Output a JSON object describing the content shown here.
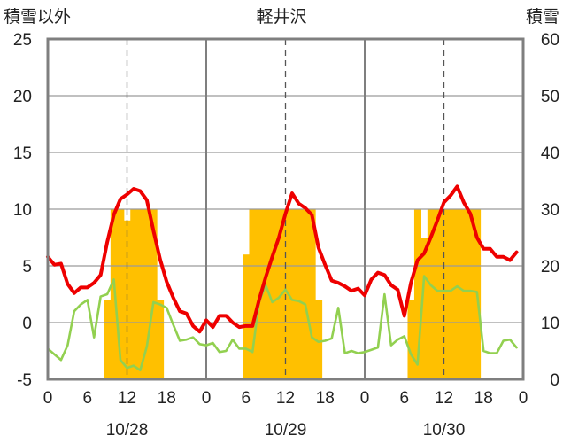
{
  "chart_data": {
    "type": "line",
    "title": "軽井沢",
    "left_axis_label": "積雪以外",
    "right_axis_label": "積雪",
    "left_ylim": [
      -5,
      25
    ],
    "left_yticks": [
      -5,
      0,
      5,
      10,
      15,
      20,
      25
    ],
    "right_ylim": [
      0,
      60
    ],
    "right_yticks": [
      0,
      10,
      20,
      30,
      40,
      50,
      60
    ],
    "x_range_hours": [
      0,
      72
    ],
    "x_tick_labels": [
      "0",
      "6",
      "12",
      "18",
      "0",
      "6",
      "12",
      "18",
      "0",
      "6",
      "12",
      "18",
      "0"
    ],
    "date_labels": [
      "10/28",
      "10/29",
      "10/30"
    ],
    "grid": "dashed vertical at 12h, solid vertical at day boundaries",
    "colors": {
      "red_series": "#ee0000",
      "green_series": "#92d050",
      "bars": "#ffc000",
      "frame": "#7f7f7f"
    },
    "bars": {
      "axis": "right",
      "x": [
        9,
        10,
        11,
        12,
        13,
        14,
        15,
        16,
        17,
        30,
        31,
        32,
        33,
        34,
        35,
        36,
        37,
        38,
        39,
        40,
        41,
        55,
        56,
        57,
        58,
        59,
        60,
        61,
        62,
        63,
        64,
        65
      ],
      "values": [
        14,
        30,
        30,
        28,
        30,
        30,
        30,
        30,
        14,
        22,
        30,
        30,
        30,
        30,
        30,
        30,
        30,
        30,
        30,
        30,
        14,
        14,
        30,
        25,
        30,
        30,
        30,
        30,
        30,
        30,
        30,
        30
      ]
    },
    "red_series": {
      "axis": "left",
      "x": [
        0,
        1,
        2,
        3,
        4,
        5,
        6,
        7,
        8,
        9,
        10,
        11,
        12,
        13,
        14,
        15,
        16,
        17,
        18,
        19,
        20,
        21,
        22,
        23,
        24,
        25,
        26,
        27,
        28,
        29,
        30,
        31,
        32,
        33,
        34,
        35,
        36,
        37,
        38,
        39,
        40,
        41,
        42,
        43,
        44,
        45,
        46,
        47,
        48,
        49,
        50,
        51,
        52,
        53,
        54,
        55,
        56,
        57,
        58,
        59,
        60,
        61,
        62,
        63,
        64,
        65,
        66,
        67,
        68,
        69,
        70,
        71
      ],
      "y": [
        5.8,
        5.1,
        5.2,
        3.4,
        2.6,
        3.1,
        3.1,
        3.5,
        4.2,
        7.1,
        9.5,
        10.9,
        11.3,
        11.8,
        11.6,
        10.8,
        8.1,
        5.6,
        3.6,
        2.2,
        1.0,
        0.8,
        -0.3,
        -0.8,
        0.2,
        -0.4,
        0.6,
        0.6,
        0.0,
        -0.4,
        -0.3,
        -0.3,
        2.0,
        4.0,
        5.8,
        7.5,
        9.6,
        11.4,
        10.5,
        10.1,
        9.5,
        6.6,
        5.1,
        3.7,
        3.5,
        3.2,
        2.8,
        3.0,
        2.4,
        3.8,
        4.4,
        4.2,
        3.3,
        2.9,
        0.6,
        3.5,
        5.5,
        6.1,
        7.5,
        9.0,
        10.6,
        11.2,
        12.0,
        10.6,
        9.6,
        7.5,
        6.5,
        6.5,
        5.8,
        5.8,
        5.5,
        6.2
      ]
    },
    "green_series": {
      "axis": "left",
      "x": [
        0,
        1,
        2,
        3,
        4,
        5,
        6,
        7,
        8,
        9,
        10,
        11,
        12,
        13,
        14,
        15,
        16,
        17,
        18,
        19,
        20,
        21,
        22,
        23,
        24,
        25,
        26,
        27,
        28,
        29,
        30,
        31,
        32,
        33,
        34,
        35,
        36,
        37,
        38,
        39,
        40,
        41,
        42,
        43,
        44,
        45,
        46,
        47,
        48,
        49,
        50,
        51,
        52,
        53,
        54,
        55,
        56,
        57,
        58,
        59,
        60,
        61,
        62,
        63,
        64,
        65,
        66,
        67,
        68,
        69,
        70,
        71
      ],
      "y": [
        -2.3,
        -2.8,
        -3.3,
        -2.0,
        1.0,
        1.6,
        2.0,
        -1.3,
        2.3,
        2.5,
        3.8,
        -3.3,
        -4.0,
        -3.8,
        -4.2,
        -2.1,
        1.8,
        1.6,
        1.3,
        -0.2,
        -1.6,
        -1.5,
        -1.3,
        -1.9,
        -2.0,
        -1.8,
        -2.6,
        -2.5,
        -1.5,
        -2.3,
        -2.3,
        -2.6,
        1.8,
        3.3,
        1.8,
        2.2,
        2.9,
        2.0,
        1.9,
        1.6,
        -1.3,
        -1.7,
        -1.6,
        -1.4,
        1.3,
        -2.7,
        -2.5,
        -2.7,
        -2.6,
        -2.4,
        -2.2,
        2.5,
        -2.0,
        -1.5,
        -1.2,
        -2.8,
        -3.7,
        4.1,
        3.3,
        2.8,
        2.8,
        2.8,
        3.2,
        2.8,
        2.8,
        2.7,
        -2.5,
        -2.7,
        -2.7,
        -1.6,
        -1.5,
        -2.2
      ]
    }
  }
}
